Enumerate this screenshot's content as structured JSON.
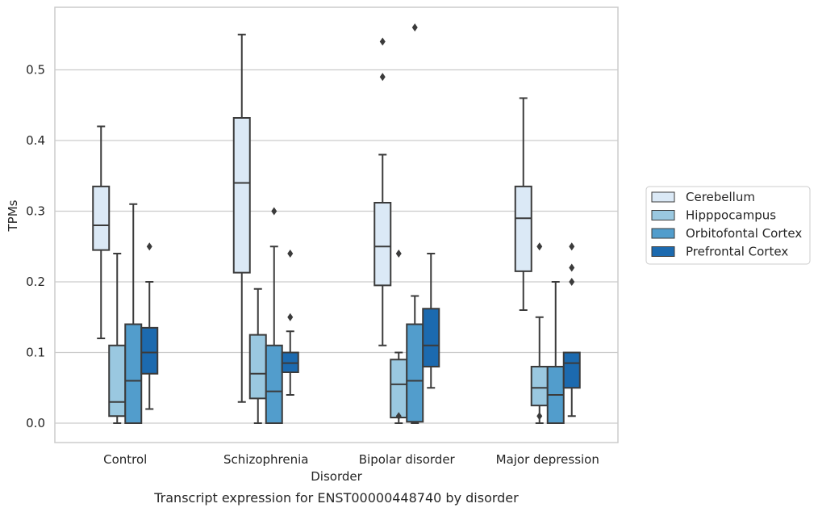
{
  "chart_data": {
    "type": "box",
    "xlabel": "Disorder",
    "ylabel": "TPMs",
    "caption": "Transcript expression for ENST00000448740 by disorder",
    "ylim": [
      -0.027,
      0.59
    ],
    "yticks": [
      0.0,
      0.1,
      0.2,
      0.3,
      0.4,
      0.5
    ],
    "ytick_labels": [
      "0.0",
      "0.1",
      "0.2",
      "0.3",
      "0.4",
      "0.5"
    ],
    "grid": "horizontal",
    "legend_position": "right",
    "categories": [
      "Control",
      "Schizophrenia",
      "Bipolar disorder",
      "Major depression"
    ],
    "series": [
      {
        "name": "Cerebellum",
        "color": "#dbe9f6",
        "boxes": [
          {
            "whislo": 0.12,
            "q1": 0.245,
            "med": 0.28,
            "q3": 0.335,
            "whishi": 0.42,
            "fliers": []
          },
          {
            "whislo": 0.03,
            "q1": 0.213,
            "med": 0.34,
            "q3": 0.432,
            "whishi": 0.55,
            "fliers": []
          },
          {
            "whislo": 0.11,
            "q1": 0.195,
            "med": 0.25,
            "q3": 0.312,
            "whishi": 0.38,
            "fliers": [
              0.49,
              0.54
            ]
          },
          {
            "whislo": 0.16,
            "q1": 0.215,
            "med": 0.29,
            "q3": 0.335,
            "whishi": 0.46,
            "fliers": []
          }
        ]
      },
      {
        "name": "Hipppocampus",
        "color": "#9ac8e0",
        "boxes": [
          {
            "whislo": 0.0,
            "q1": 0.01,
            "med": 0.03,
            "q3": 0.11,
            "whishi": 0.24,
            "fliers": []
          },
          {
            "whislo": 0.0,
            "q1": 0.035,
            "med": 0.07,
            "q3": 0.125,
            "whishi": 0.19,
            "fliers": []
          },
          {
            "whislo": 0.0,
            "q1": 0.008,
            "med": 0.055,
            "q3": 0.09,
            "whishi": 0.1,
            "fliers": [
              0.01,
              0.24
            ]
          },
          {
            "whislo": 0.0,
            "q1": 0.025,
            "med": 0.05,
            "q3": 0.08,
            "whishi": 0.15,
            "fliers": [
              0.01,
              0.25
            ]
          }
        ]
      },
      {
        "name": "Orbitofontal Cortex",
        "color": "#529dcc",
        "boxes": [
          {
            "whislo": 0.0,
            "q1": 0.0,
            "med": 0.06,
            "q3": 0.14,
            "whishi": 0.31,
            "fliers": []
          },
          {
            "whislo": 0.0,
            "q1": 0.0,
            "med": 0.045,
            "q3": 0.11,
            "whishi": 0.25,
            "fliers": [
              0.3
            ]
          },
          {
            "whislo": 0.0,
            "q1": 0.002,
            "med": 0.06,
            "q3": 0.14,
            "whishi": 0.18,
            "fliers": [
              0.56
            ]
          },
          {
            "whislo": 0.0,
            "q1": 0.0,
            "med": 0.04,
            "q3": 0.08,
            "whishi": 0.2,
            "fliers": []
          }
        ]
      },
      {
        "name": "Prefrontal Cortex",
        "color": "#1c6aaf",
        "boxes": [
          {
            "whislo": 0.02,
            "q1": 0.07,
            "med": 0.1,
            "q3": 0.135,
            "whishi": 0.2,
            "fliers": [
              0.25
            ]
          },
          {
            "whislo": 0.04,
            "q1": 0.072,
            "med": 0.085,
            "q3": 0.1,
            "whishi": 0.13,
            "fliers": [
              0.15,
              0.24
            ]
          },
          {
            "whislo": 0.05,
            "q1": 0.08,
            "med": 0.11,
            "q3": 0.162,
            "whishi": 0.24,
            "fliers": []
          },
          {
            "whislo": 0.01,
            "q1": 0.05,
            "med": 0.085,
            "q3": 0.1,
            "whishi": 0.1,
            "fliers": [
              0.2,
              0.22,
              0.25
            ]
          }
        ]
      }
    ],
    "style": {
      "line_color": "#3b3b3b",
      "grid_color": "#cccccc",
      "frame_color": "#cccccc"
    }
  }
}
